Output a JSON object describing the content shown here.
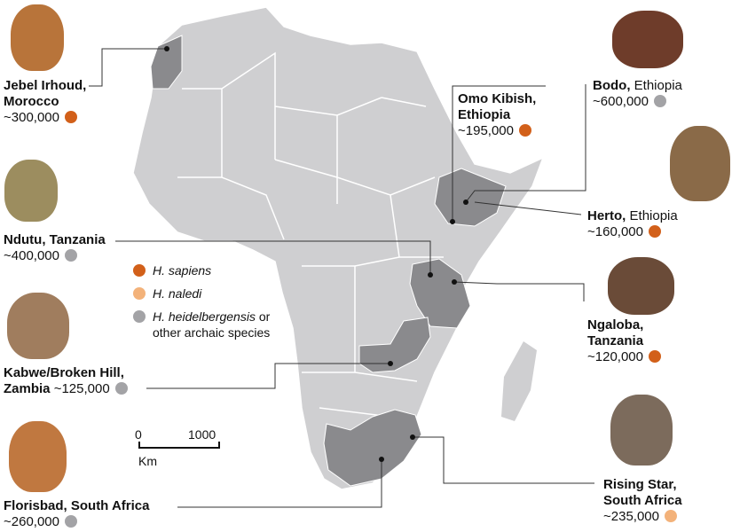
{
  "colors": {
    "sapiens": "#d2601a",
    "naledi": "#f3b27a",
    "archaic": "#a3a3a6",
    "land": "#cfcfd1",
    "highlight": "#8a8a8d"
  },
  "legend": [
    {
      "name": "H. sapiens",
      "suffix": "",
      "color_key": "sapiens"
    },
    {
      "name": "H. naledi",
      "suffix": "",
      "color_key": "naledi"
    },
    {
      "name": "H. heidelbergensis",
      "suffix": " or other archaic species",
      "color_key": "archaic"
    }
  ],
  "scale": {
    "start": "0",
    "end": "1000",
    "unit": "Km"
  },
  "sites": [
    {
      "site": "Jebel Irhoud,",
      "place": "Morocco",
      "age": "~300,000",
      "species": "sapiens"
    },
    {
      "site": "Ndutu,",
      "place": "Tanzania",
      "age": "~400,000",
      "species": "archaic"
    },
    {
      "site": "Kabwe/Broken Hill,",
      "place": "Zambia",
      "age": "~125,000",
      "species": "archaic"
    },
    {
      "site": "Florisbad,",
      "place": "South Africa",
      "age": "~260,000",
      "species": "archaic"
    },
    {
      "site": "Omo Kibish,",
      "place": "Ethiopia",
      "age": "~195,000",
      "species": "sapiens"
    },
    {
      "site": "Bodo,",
      "place": "Ethiopia",
      "age": "~600,000",
      "species": "archaic"
    },
    {
      "site": "Herto,",
      "place": "Ethiopia",
      "age": "~160,000",
      "species": "sapiens"
    },
    {
      "site": "Ngaloba,",
      "place": "Tanzania",
      "age": "~120,000",
      "species": "sapiens"
    },
    {
      "site": "Rising Star,",
      "place": "South Africa",
      "age": "~235,000",
      "species": "naledi"
    }
  ]
}
